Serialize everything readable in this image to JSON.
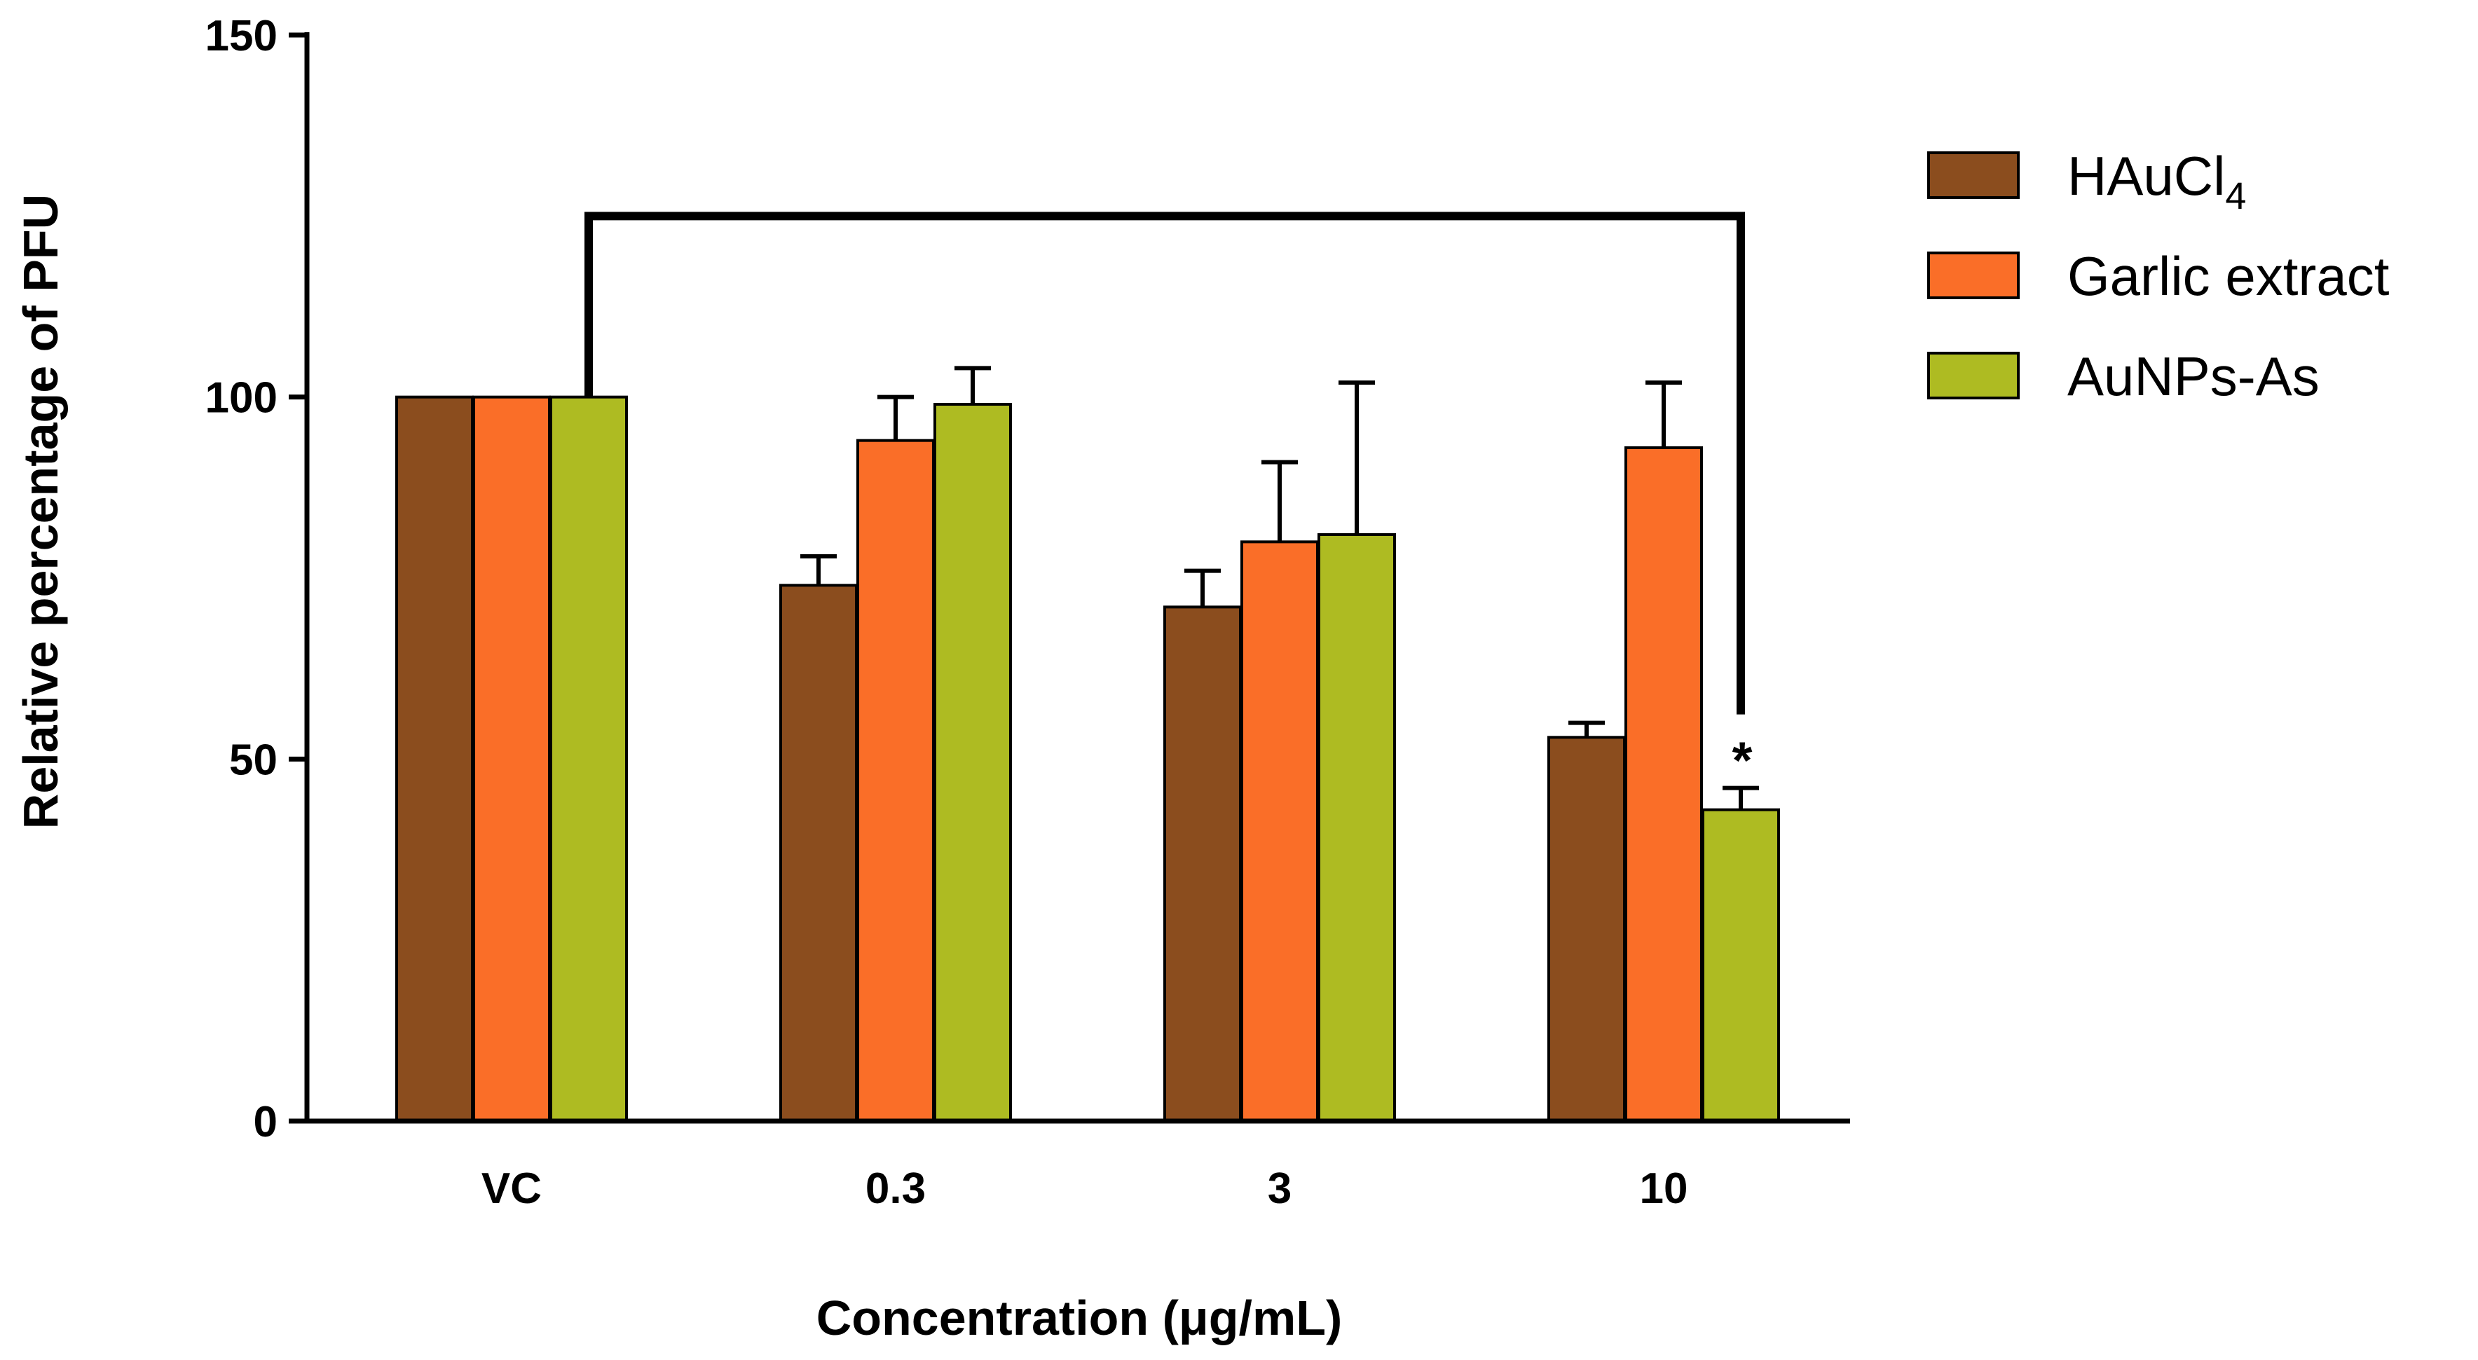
{
  "chart_data": {
    "type": "bar",
    "title": "",
    "xlabel": "Concentration (μg/mL)",
    "ylabel": "Relative percentage of PFU",
    "ylim": [
      0,
      150
    ],
    "yticks": [
      0,
      50,
      100,
      150
    ],
    "categories": [
      "VC",
      "0.3",
      "3",
      "10"
    ],
    "series": [
      {
        "name": "HAuCl",
        "name_subscript": "4",
        "color": "#8B4D1E",
        "values": [
          100,
          74,
          71,
          53
        ],
        "errors": [
          0,
          4,
          5,
          2
        ]
      },
      {
        "name": "Garlic extract",
        "color": "#FA6E28",
        "values": [
          100,
          94,
          80,
          93
        ],
        "errors": [
          0,
          6,
          11,
          9
        ]
      },
      {
        "name": "AuNPs-As",
        "color": "#AEBB22",
        "values": [
          100,
          99,
          81,
          43
        ],
        "errors": [
          0,
          5,
          21,
          3
        ]
      }
    ],
    "significance": {
      "from_category": "VC",
      "to_category": "10",
      "series": "AuNPs-As",
      "bracket_level": 125,
      "marker": "*"
    },
    "legend_position": "right"
  }
}
